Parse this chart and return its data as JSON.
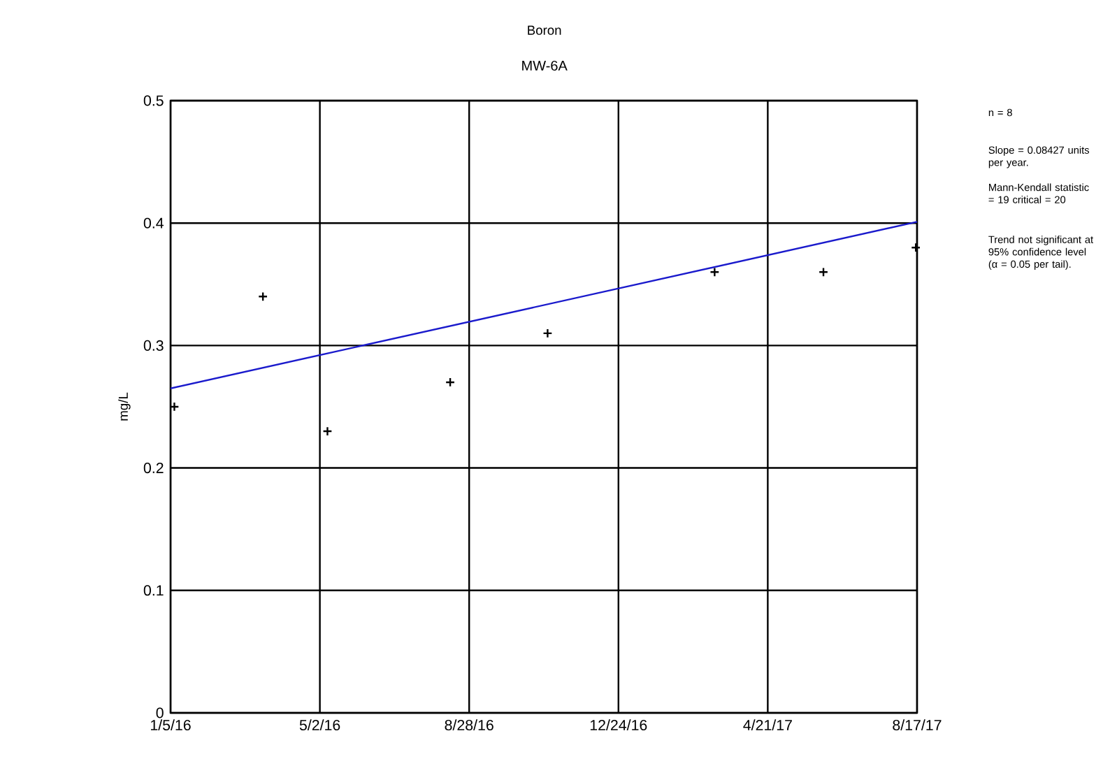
{
  "chart_data": {
    "type": "scatter",
    "title": "Boron",
    "subtitle": "MW-6A",
    "ylabel": "mg/L",
    "xlim": [
      "2016-01-05",
      "2017-08-17"
    ],
    "xticks": [
      {
        "value": "2016-01-05",
        "label": "1/5/16"
      },
      {
        "value": "2016-05-02",
        "label": "5/2/16"
      },
      {
        "value": "2016-08-28",
        "label": "8/28/16"
      },
      {
        "value": "2016-12-24",
        "label": "12/24/16"
      },
      {
        "value": "2017-04-21",
        "label": "4/21/17"
      },
      {
        "value": "2017-08-17",
        "label": "8/17/17"
      }
    ],
    "ylim": [
      0,
      0.5
    ],
    "yticks": [
      0,
      0.1,
      0.2,
      0.3,
      0.4,
      0.5
    ],
    "grid": true,
    "series": [
      {
        "marker": "cross",
        "color": "#000000",
        "x": [
          "2016-01-08",
          "2016-03-18",
          "2016-05-08",
          "2016-08-13",
          "2016-10-29",
          "2017-03-10",
          "2017-06-04",
          "2017-08-16"
        ],
        "values": [
          0.25,
          0.34,
          0.23,
          0.27,
          0.31,
          0.36,
          0.36,
          0.38
        ]
      },
      {
        "type": "line",
        "marker": "none",
        "color": "#1a1acc",
        "x": [
          "2016-01-05",
          "2017-08-17"
        ],
        "values": [
          0.265,
          0.401
        ]
      }
    ],
    "annotations": [
      "n = 8",
      "Slope = 0.08427 units per year.",
      "Mann-Kendall statistic = 19 critical = 20",
      "Trend not significant at 95% confidence level (α = 0.05 per tail)."
    ]
  }
}
